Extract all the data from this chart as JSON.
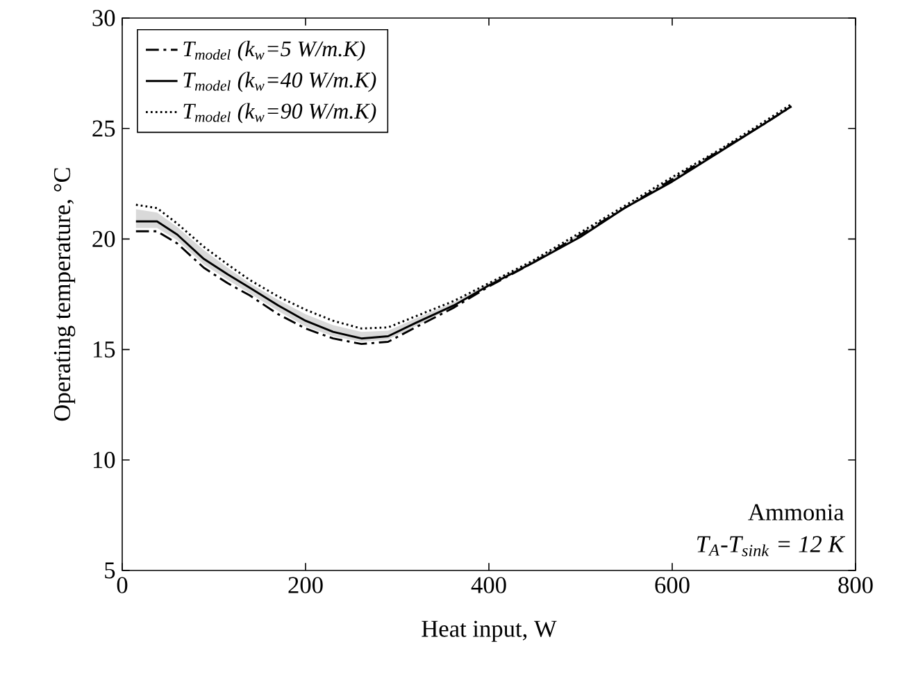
{
  "chart_data": {
    "type": "line",
    "xlabel": "Heat input, W",
    "ylabel": "Operating temperature, °C",
    "x": [
      15,
      38,
      60,
      89,
      115,
      139,
      170,
      200,
      230,
      261,
      290,
      320,
      362,
      400,
      447,
      500,
      548,
      600,
      650,
      700,
      730
    ],
    "series": [
      {
        "name": "T$_{model}$ (k$_{w}$=5 W/m.K)",
        "color": "#000000",
        "line_style": "dashdot",
        "values": [
          20.35,
          20.35,
          19.8,
          18.7,
          18.0,
          17.45,
          16.6,
          15.95,
          15.5,
          15.25,
          15.35,
          16.0,
          16.9,
          17.85,
          18.9,
          20.2,
          21.4,
          22.7,
          23.95,
          25.2,
          26.0
        ]
      },
      {
        "name": "T$_{model}$ (k$_{w}$=40 W/m.K)",
        "color": "#000000",
        "line_style": "solid",
        "values": [
          20.8,
          20.8,
          20.2,
          19.1,
          18.4,
          17.8,
          17.0,
          16.3,
          15.8,
          15.5,
          15.6,
          16.2,
          17.0,
          17.9,
          18.9,
          20.1,
          21.4,
          22.6,
          23.9,
          25.2,
          26.0
        ],
        "lower": [
          20.5,
          20.5,
          19.95,
          18.85,
          18.15,
          17.55,
          16.75,
          16.05,
          15.6,
          15.35,
          15.45,
          16.05,
          16.95,
          17.85,
          18.9,
          20.15,
          21.4,
          22.65,
          23.9,
          25.2,
          26.0
        ],
        "upper": [
          21.35,
          21.2,
          20.55,
          19.5,
          18.7,
          18.0,
          17.25,
          16.6,
          16.1,
          15.8,
          15.85,
          16.4,
          17.15,
          18.0,
          19.0,
          20.25,
          21.45,
          22.75,
          23.95,
          25.25,
          26.05
        ]
      },
      {
        "name": "T$_{model}$ (k$_{w}$=90 W/m.K)",
        "color": "#000000",
        "line_style": "dotted",
        "values": [
          21.55,
          21.4,
          20.7,
          19.65,
          18.85,
          18.15,
          17.4,
          16.8,
          16.3,
          15.95,
          16.0,
          16.5,
          17.2,
          18.0,
          19.0,
          20.3,
          21.5,
          22.8,
          24.0,
          25.3,
          26.1
        ]
      }
    ],
    "xlim": [
      0,
      800
    ],
    "ylim": [
      5,
      30
    ],
    "xticks": [
      0,
      200,
      400,
      600,
      800
    ],
    "yticks": [
      5,
      10,
      15,
      20,
      25,
      30
    ],
    "grid": false,
    "legend": "top left",
    "marker": "none",
    "annotations": [
      "Ammonia",
      "T$_{A}$-T$_{sink}$ = 12 K"
    ]
  }
}
